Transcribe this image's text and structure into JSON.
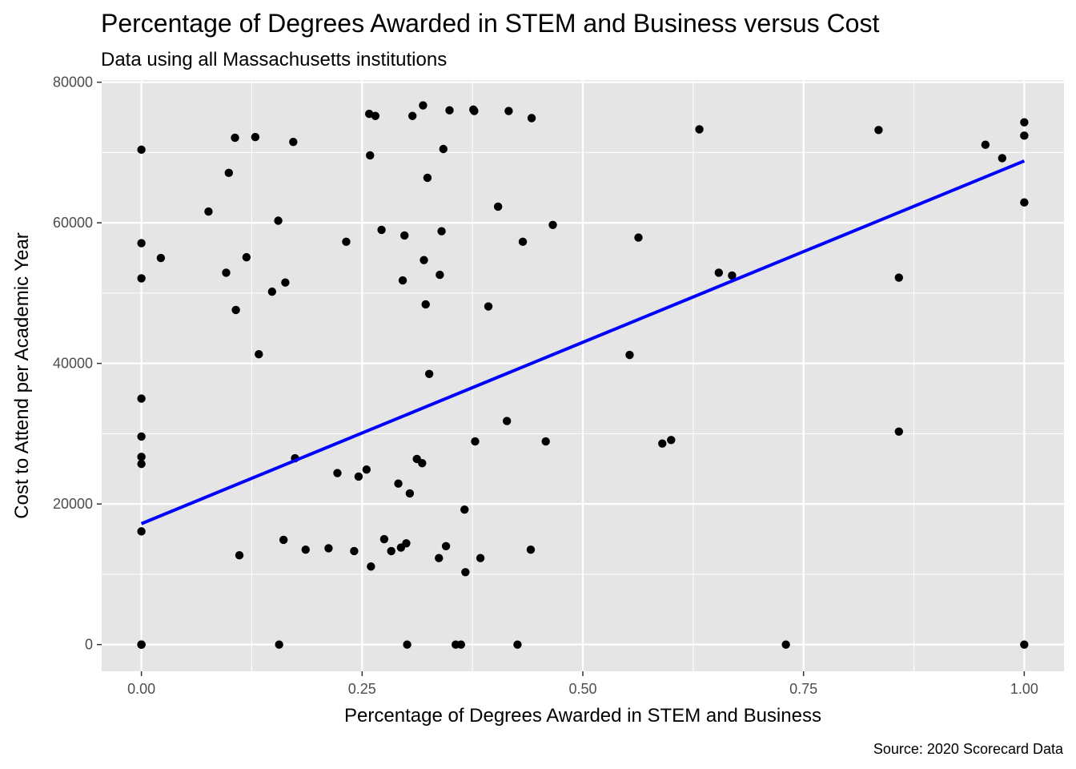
{
  "chart_data": {
    "type": "scatter",
    "title": "Percentage of Degrees Awarded in STEM and Business versus Cost",
    "subtitle": "Data using all Massachusetts institutions",
    "caption": "Source: 2020 Scorecard Data",
    "xlabel": "Percentage of Degrees Awarded in STEM and Business",
    "ylabel": "Cost to Attend per Academic Year",
    "xlim": [
      -0.045,
      1.045
    ],
    "ylim": [
      -3800,
      80300
    ],
    "x_ticks": [
      0,
      0.25,
      0.5,
      0.75,
      1
    ],
    "x_tick_labels": [
      "0.00",
      "0.25",
      "0.50",
      "0.75",
      "1.00"
    ],
    "y_ticks": [
      0,
      20000,
      40000,
      60000,
      80000
    ],
    "y_tick_labels": [
      "0",
      "20000",
      "40000",
      "60000",
      "80000"
    ],
    "grid": true,
    "point_color": "#000000",
    "line_color": "#0000ff",
    "panel_background": "#e5e5e5",
    "trend_line": {
      "x": [
        0,
        1
      ],
      "y": [
        17200,
        68800
      ]
    },
    "points": [
      [
        0,
        70400
      ],
      [
        0,
        57100
      ],
      [
        0,
        52100
      ],
      [
        0,
        35000
      ],
      [
        0,
        29600
      ],
      [
        0,
        26700
      ],
      [
        0,
        25700
      ],
      [
        0,
        16100
      ],
      [
        0,
        0
      ],
      [
        0,
        0
      ],
      [
        0,
        0
      ],
      [
        0,
        0
      ],
      [
        0.022,
        55000
      ],
      [
        0.076,
        61600
      ],
      [
        0.096,
        52900
      ],
      [
        0.099,
        67100
      ],
      [
        0.106,
        72100
      ],
      [
        0.107,
        47600
      ],
      [
        0.111,
        12700
      ],
      [
        0.119,
        55100
      ],
      [
        0.129,
        72200
      ],
      [
        0.133,
        41300
      ],
      [
        0.148,
        50200
      ],
      [
        0.155,
        60300
      ],
      [
        0.156,
        0
      ],
      [
        0.161,
        14900
      ],
      [
        0.163,
        51500
      ],
      [
        0.172,
        71500
      ],
      [
        0.174,
        26500
      ],
      [
        0.186,
        13500
      ],
      [
        0.212,
        13700
      ],
      [
        0.222,
        24400
      ],
      [
        0.232,
        57300
      ],
      [
        0.241,
        13300
      ],
      [
        0.246,
        23900
      ],
      [
        0.255,
        24900
      ],
      [
        0.258,
        75500
      ],
      [
        0.259,
        69600
      ],
      [
        0.26,
        11100
      ],
      [
        0.265,
        75200
      ],
      [
        0.272,
        59000
      ],
      [
        0.275,
        15000
      ],
      [
        0.283,
        13300
      ],
      [
        0.291,
        22900
      ],
      [
        0.294,
        13800
      ],
      [
        0.296,
        51800
      ],
      [
        0.298,
        58200
      ],
      [
        0.3,
        14400
      ],
      [
        0.301,
        0
      ],
      [
        0.304,
        21500
      ],
      [
        0.307,
        75200
      ],
      [
        0.312,
        26400
      ],
      [
        0.318,
        25800
      ],
      [
        0.319,
        76700
      ],
      [
        0.32,
        54700
      ],
      [
        0.322,
        48400
      ],
      [
        0.324,
        66400
      ],
      [
        0.326,
        38500
      ],
      [
        0.337,
        12300
      ],
      [
        0.338,
        52600
      ],
      [
        0.34,
        58800
      ],
      [
        0.342,
        70500
      ],
      [
        0.345,
        14000
      ],
      [
        0.349,
        76000
      ],
      [
        0.356,
        0
      ],
      [
        0.362,
        0
      ],
      [
        0.366,
        19200
      ],
      [
        0.367,
        10300
      ],
      [
        0.376,
        76100
      ],
      [
        0.377,
        75900
      ],
      [
        0.378,
        28900
      ],
      [
        0.384,
        12300
      ],
      [
        0.393,
        48100
      ],
      [
        0.404,
        62300
      ],
      [
        0.414,
        31800
      ],
      [
        0.416,
        75900
      ],
      [
        0.426,
        0
      ],
      [
        0.432,
        57300
      ],
      [
        0.441,
        13500
      ],
      [
        0.442,
        74900
      ],
      [
        0.458,
        28900
      ],
      [
        0.466,
        59700
      ],
      [
        0.553,
        41200
      ],
      [
        0.563,
        57900
      ],
      [
        0.59,
        28600
      ],
      [
        0.6,
        29100
      ],
      [
        0.632,
        73300
      ],
      [
        0.654,
        52900
      ],
      [
        0.669,
        52500
      ],
      [
        0.73,
        0
      ],
      [
        0.835,
        73200
      ],
      [
        0.858,
        52200
      ],
      [
        0.858,
        30300
      ],
      [
        0.956,
        71100
      ],
      [
        0.975,
        69200
      ],
      [
        1,
        74300
      ],
      [
        1,
        72400
      ],
      [
        1,
        62900
      ],
      [
        1,
        0
      ]
    ]
  }
}
